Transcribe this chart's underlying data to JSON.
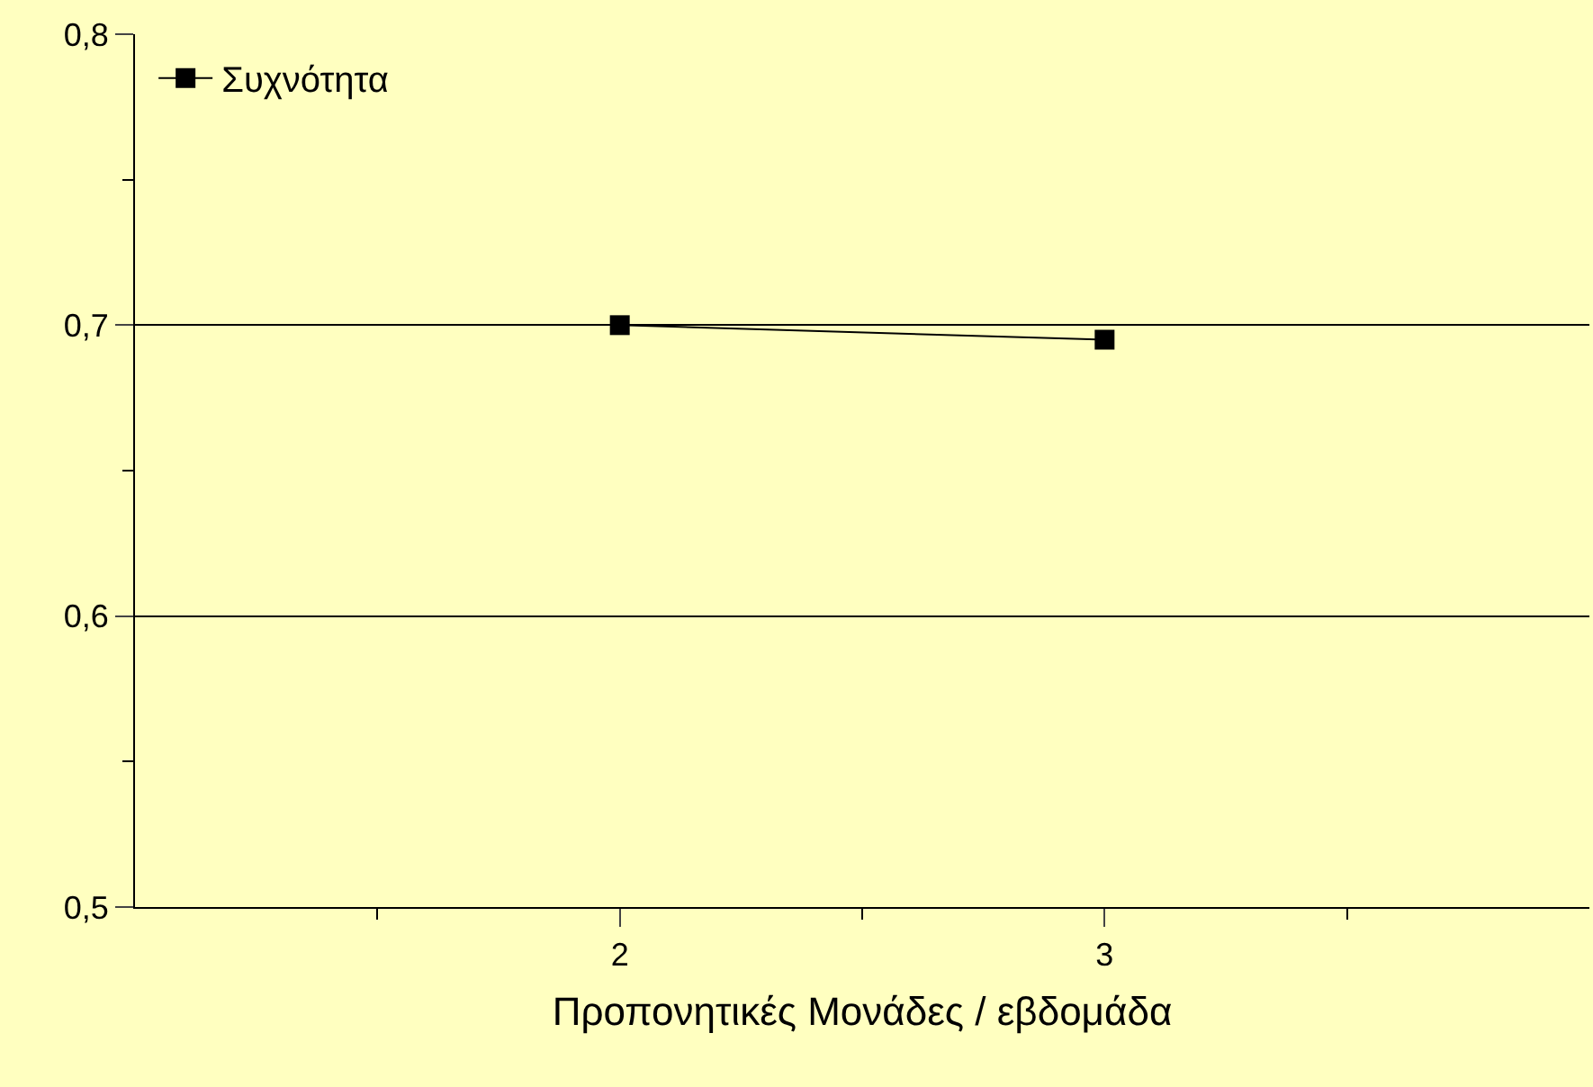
{
  "chart_data": {
    "type": "line",
    "xlabel": "Προπονητικές Μονάδες / εβδομάδα",
    "x": [
      2,
      3
    ],
    "series": [
      {
        "name": "Συχνότητα",
        "color": "#000000",
        "values": [
          0.7,
          0.695
        ]
      }
    ],
    "xlim": [
      1,
      4
    ],
    "xticks": [
      {
        "value": 1.5,
        "label": null
      },
      2,
      {
        "value": 2.5,
        "label": null
      },
      3,
      {
        "value": 3.5,
        "label": null
      }
    ],
    "ylim": [
      0.5,
      0.8
    ],
    "yticks": [
      {
        "value": 0.5,
        "label": "0,5"
      },
      {
        "value": 0.55,
        "label": null
      },
      {
        "value": 0.6,
        "label": "0,6"
      },
      {
        "value": 0.65,
        "label": null
      },
      {
        "value": 0.7,
        "label": "0,7"
      },
      {
        "value": 0.75,
        "label": null
      },
      {
        "value": 0.8,
        "label": "0,8"
      }
    ],
    "grid": "y",
    "legend": "top left",
    "marker": "square",
    "line_style": "solid"
  }
}
